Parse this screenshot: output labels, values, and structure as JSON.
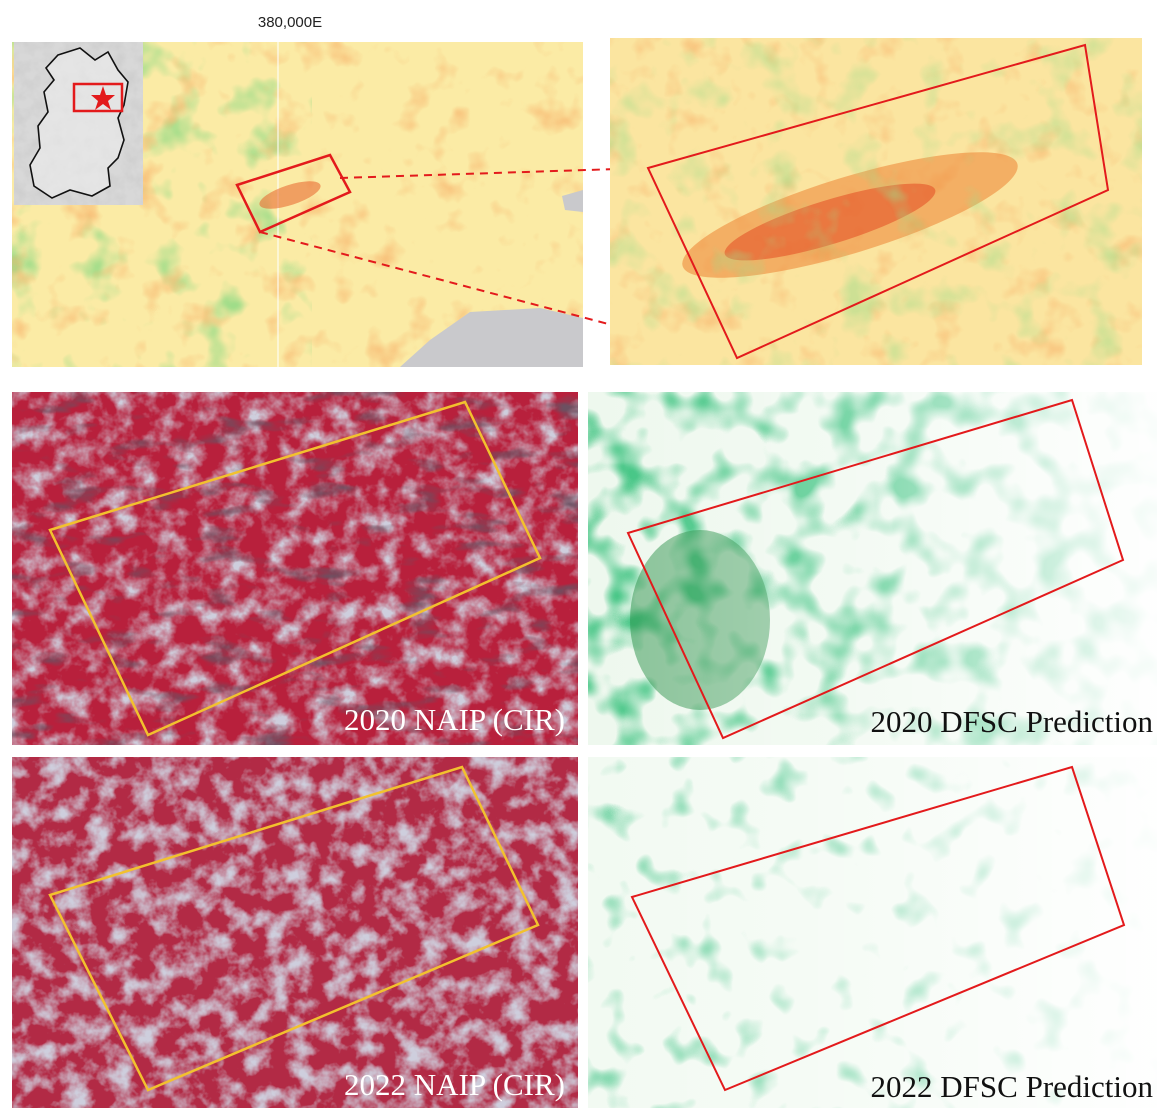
{
  "map": {
    "coordinate_label": "380,000E"
  },
  "panels": [
    {
      "label": "2020 NAIP (CIR)"
    },
    {
      "label": "2020 DFSC Prediction"
    },
    {
      "label": "2022 NAIP (CIR)"
    },
    {
      "label": "2022 DFSC Prediction"
    }
  ]
}
